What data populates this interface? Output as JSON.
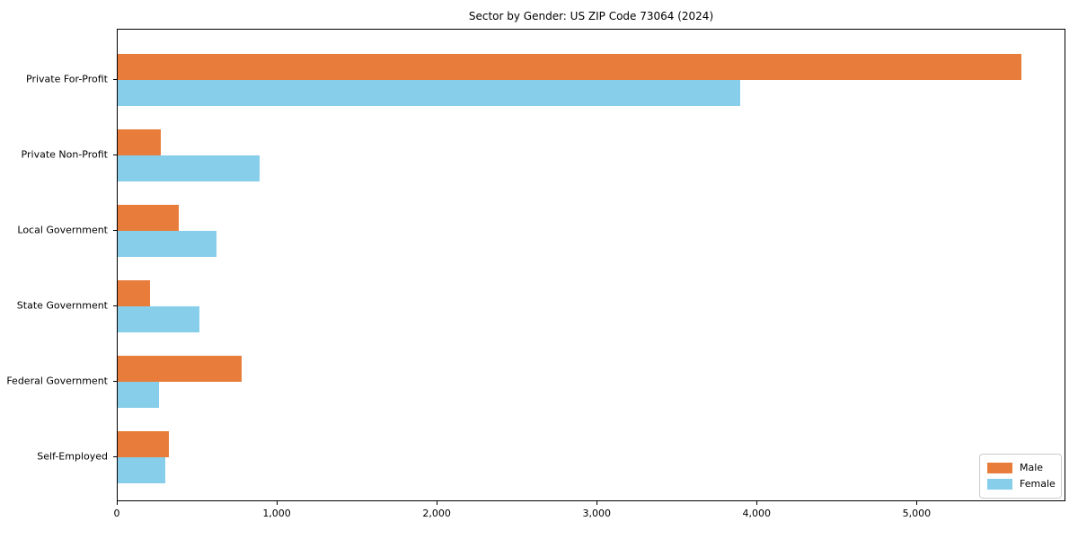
{
  "title": "Sector by Gender: US ZIP Code 73064 (2024)",
  "chart_data": {
    "type": "bar",
    "orientation": "horizontal",
    "title": "Sector by Gender: US ZIP Code 73064 (2024)",
    "categories": [
      "Private For-Profit",
      "Private Non-Profit",
      "Local Government",
      "State Government",
      "Federal Government",
      "Self-Employed"
    ],
    "series": [
      {
        "name": "Male",
        "color": "#E87D3B",
        "values": [
          5650,
          270,
          380,
          200,
          775,
          320
        ]
      },
      {
        "name": "Female",
        "color": "#87CEEB",
        "values": [
          3890,
          885,
          615,
          510,
          260,
          300
        ]
      }
    ],
    "xlabel": "",
    "ylabel": "",
    "xlim": [
      0,
      5930
    ],
    "xticks": [
      0,
      1000,
      2000,
      3000,
      4000,
      5000
    ],
    "xtick_labels": [
      "0",
      "1,000",
      "2,000",
      "3,000",
      "4,000",
      "5,000"
    ],
    "grid": false,
    "legend": {
      "position": "lower right",
      "entries": [
        "Male",
        "Female"
      ]
    }
  }
}
